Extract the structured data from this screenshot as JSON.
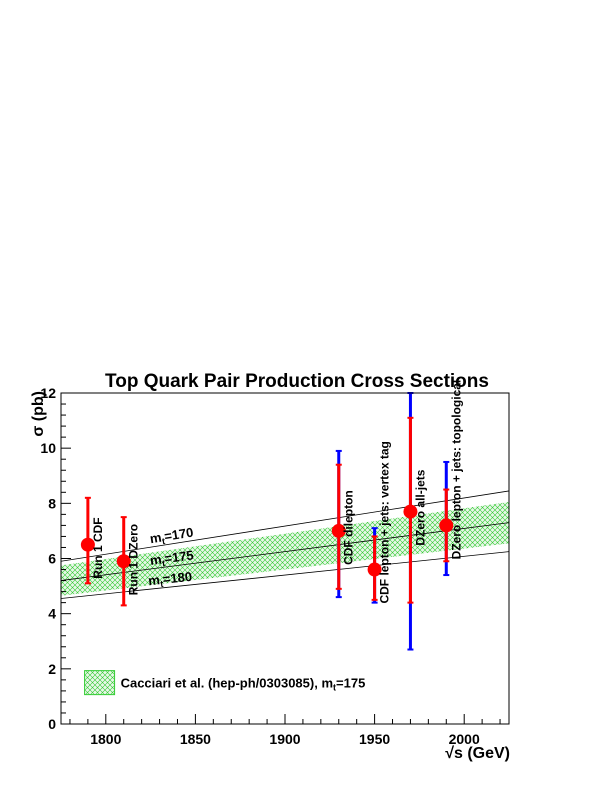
{
  "chart_data": {
    "type": "scatter",
    "title": "Top Quark Pair Production Cross Sections",
    "xlabel": "√s (GeV)",
    "ylabel": "σ (pb)",
    "xlim": [
      1775,
      2025
    ],
    "ylim": [
      0,
      12
    ],
    "x_ticks": [
      1800,
      1850,
      1900,
      1950,
      2000
    ],
    "y_ticks": [
      0,
      2,
      4,
      6,
      8,
      10,
      12
    ],
    "grid": false,
    "colors": {
      "point": "#ff0000",
      "stat_error": "#ff0000",
      "syst_error": "#0000ff",
      "band_fill": "#33cc33",
      "theory_line": "#000000"
    },
    "measurements": [
      {
        "label": "Run 1 CDF",
        "x": 1790,
        "y": 6.5,
        "stat_err": [
          5.1,
          8.2
        ],
        "total_err": null
      },
      {
        "label": "Run 1 DZero",
        "x": 1810,
        "y": 5.9,
        "stat_err": [
          4.3,
          7.5
        ],
        "total_err": null
      },
      {
        "label": "CDF dilepton",
        "x": 1930,
        "y": 7.0,
        "stat_err": [
          4.9,
          9.4
        ],
        "total_err": [
          4.6,
          9.9
        ]
      },
      {
        "label": "CDF lepton + jets: vertex tag",
        "x": 1950,
        "y": 5.6,
        "stat_err": [
          4.5,
          6.8
        ],
        "total_err": [
          4.4,
          7.1
        ]
      },
      {
        "label": "DZero all-jets",
        "x": 1970,
        "y": 7.7,
        "stat_err": [
          4.4,
          11.1
        ],
        "total_err": [
          2.7,
          12.0
        ]
      },
      {
        "label": "DZero lepton + jets: topological",
        "x": 1990,
        "y": 7.2,
        "stat_err": [
          5.9,
          8.5
        ],
        "total_err": [
          5.4,
          9.5
        ]
      }
    ],
    "theory_lines": [
      {
        "label": "m_t=170",
        "label_main": "m",
        "label_sub": "t",
        "label_rest": "=170",
        "x": [
          1775,
          2025
        ],
        "y": [
          5.9,
          8.45
        ]
      },
      {
        "label": "m_t=175",
        "label_main": "m",
        "label_sub": "t",
        "label_rest": "=175",
        "x": [
          1775,
          2025
        ],
        "y": [
          5.2,
          7.3
        ]
      },
      {
        "label": "m_t=180",
        "label_main": "m",
        "label_sub": "t",
        "label_rest": "=180",
        "x": [
          1775,
          2025
        ],
        "y": [
          4.55,
          6.25
        ]
      }
    ],
    "band": {
      "x": [
        1775,
        2025
      ],
      "y_low": [
        4.65,
        6.55
      ],
      "y_high": [
        5.75,
        8.05
      ]
    },
    "legend": {
      "placement": "bottom-left",
      "entry_main": "Cacciari et al. (hep-ph/0303085), m",
      "entry_sub": "t",
      "entry_rest": "=175"
    }
  }
}
